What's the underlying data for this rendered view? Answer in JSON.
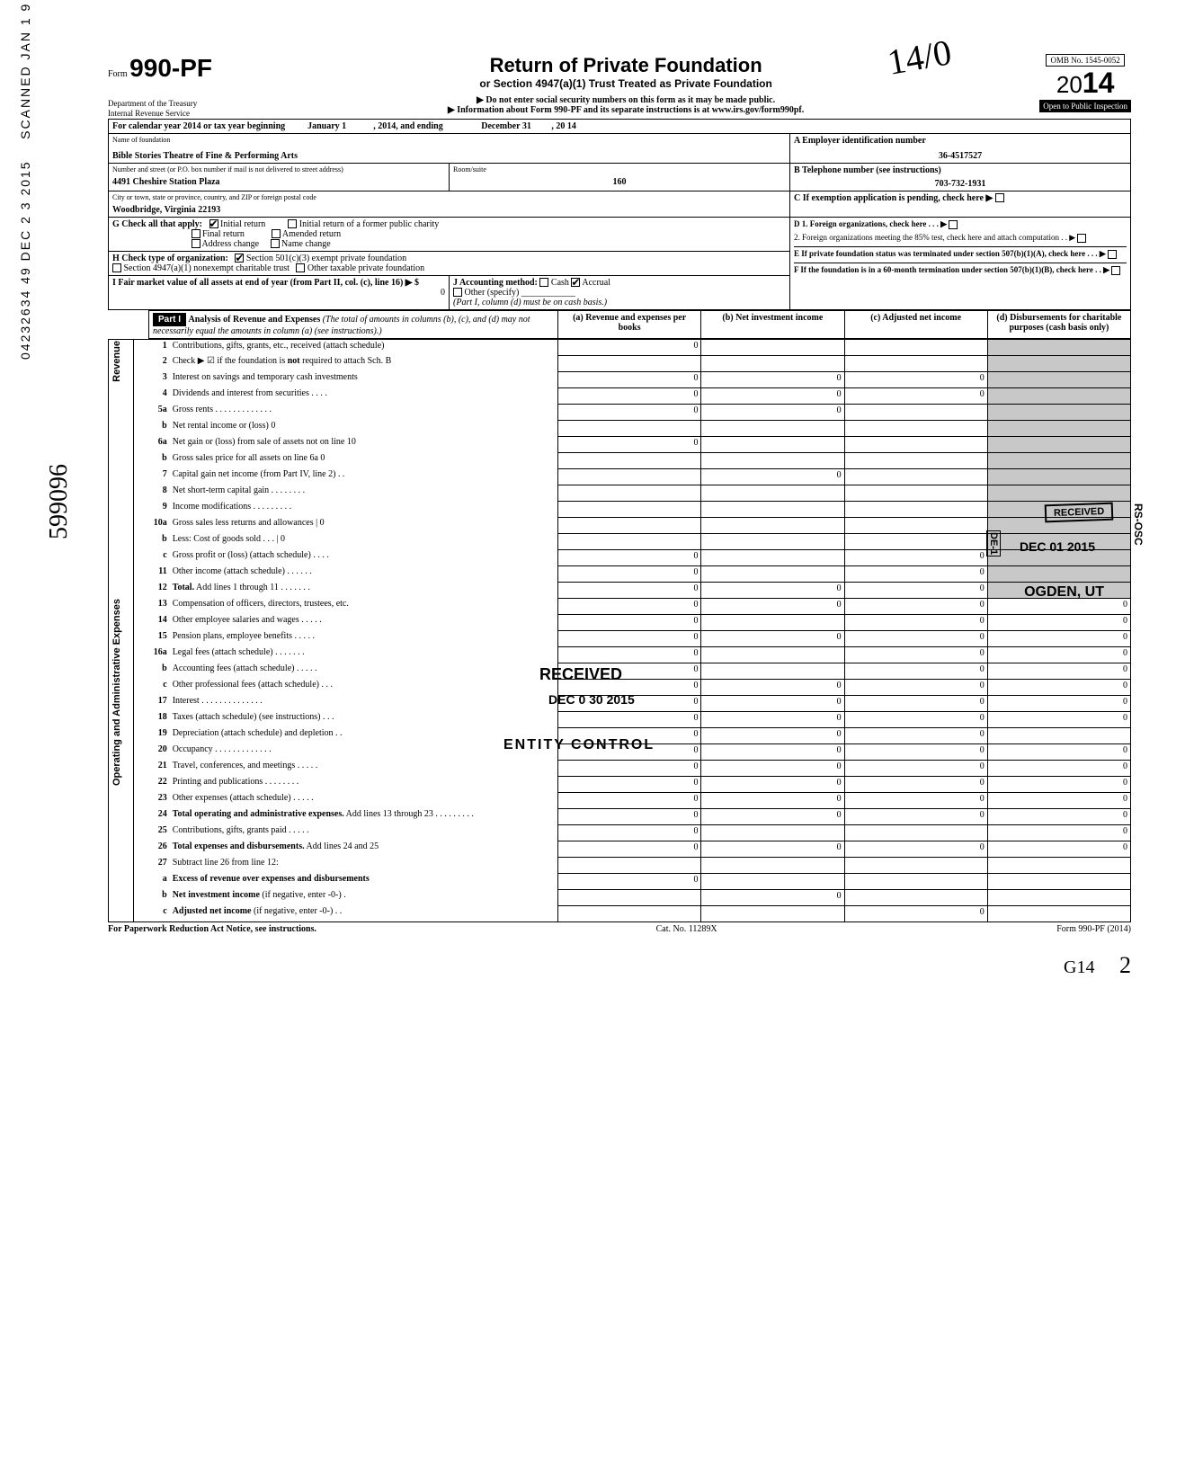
{
  "header": {
    "form": "990-PF",
    "form_prefix": "Form",
    "dept1": "Department of the Treasury",
    "dept2": "Internal Revenue Service",
    "title": "Return of Private Foundation",
    "subtitle": "or Section 4947(a)(1) Trust Treated as Private Foundation",
    "note1": "▶ Do not enter social security numbers on this form as it may be made public.",
    "note2": "▶ Information about Form 990-PF and its separate instructions is at www.irs.gov/form990pf.",
    "omb": "OMB No. 1545-0052",
    "year_prefix": "20",
    "year_big": "14",
    "open_pub": "Open to Public Inspection",
    "scribble": "14/0"
  },
  "period": {
    "label": "For calendar year 2014 or tax year beginning",
    "begin": "January 1",
    "mid": ", 2014, and ending",
    "end": "December 31",
    "end2": ", 20",
    "end_yr": "14"
  },
  "ident": {
    "name_label": "Name of foundation",
    "name": "Bible Stories Theatre of Fine & Performing Arts",
    "addr_label": "Number and street (or P.O. box number if mail is not delivered to street address)",
    "addr": "4491 Cheshire Station Plaza",
    "room_label": "Room/suite",
    "room": "160",
    "city_label": "City or town, state or province, country, and ZIP or foreign postal code",
    "city": "Woodbridge, Virginia 22193",
    "ein_label": "A  Employer identification number",
    "ein": "36-4517527",
    "tel_label": "B  Telephone number (see instructions)",
    "tel": "703-732-1931",
    "c_label": "C  If exemption application is pending, check here ▶"
  },
  "g": {
    "label": "G  Check all that apply:",
    "o1": "Initial return",
    "o1_checked": true,
    "o2": "Initial return of a former public charity",
    "o3": "Final return",
    "o4": "Amended return",
    "o5": "Address change",
    "o6": "Name change"
  },
  "h": {
    "label": "H  Check type of organization:",
    "o1": "Section 501(c)(3) exempt private foundation",
    "o1_checked": true,
    "o2": "Section 4947(a)(1) nonexempt charitable trust",
    "o3": "Other taxable private foundation"
  },
  "i": {
    "label": "I   Fair market value of all assets at end of year  (from Part II, col. (c), line 16) ▶ $",
    "val": "0"
  },
  "j": {
    "label": "J   Accounting method:",
    "o1": "Cash",
    "o2": "Accrual",
    "o2_checked": true,
    "o3": "Other (specify)",
    "note": "(Part I, column (d) must be on cash basis.)"
  },
  "d": {
    "d1": "D  1. Foreign organizations, check here . . . ▶",
    "d2": "2. Foreign organizations meeting the 85% test, check here and attach computation   .  . ▶",
    "e": "E  If private foundation status was terminated under section 507(b)(1)(A), check here  .  .  . ▶",
    "f": "F  If the foundation is in a 60-month termination under section 507(b)(1)(B), check here  .  . ▶"
  },
  "part1": {
    "hdr": "Part I",
    "title": "Analysis of Revenue and Expenses",
    "title2": "(The total of amounts in columns (b), (c), and (d) may not necessarily equal the amounts in column (a) (see instructions).)",
    "col_a": "(a) Revenue and expenses per books",
    "col_b": "(b) Net investment income",
    "col_c": "(c) Adjusted net income",
    "col_d": "(d) Disbursements for charitable purposes (cash basis only)"
  },
  "revenue_label": "Revenue",
  "opadmin_label": "Operating and Administrative Expenses",
  "rows": [
    {
      "n": "1",
      "d": "Contributions, gifts, grants, etc., received (attach schedule)",
      "a": "0"
    },
    {
      "n": "2",
      "d": "Check ▶ ☑ if the foundation is <b>not</b> required to attach Sch. B"
    },
    {
      "n": "3",
      "d": "Interest on savings and temporary cash investments",
      "a": "0",
      "b": "0",
      "c": "0"
    },
    {
      "n": "4",
      "d": "Dividends and interest from securities  .  .  .  .",
      "a": "0",
      "b": "0",
      "c": "0"
    },
    {
      "n": "5a",
      "d": "Gross rents . . . . . . . . . . . . .",
      "a": "0",
      "b": "0"
    },
    {
      "n": "b",
      "d": "Net rental income or (loss)                                      0"
    },
    {
      "n": "6a",
      "d": "Net gain or (loss) from sale of assets not on line 10",
      "a": "0"
    },
    {
      "n": "b",
      "d": "Gross sales price for all assets on line 6a                    0"
    },
    {
      "n": "7",
      "d": "Capital gain net income (from Part IV, line 2)  .  .",
      "b": "0"
    },
    {
      "n": "8",
      "d": "Net short-term capital gain . . . . . . . ."
    },
    {
      "n": "9",
      "d": "Income modifications   .  .  .  .  .  .  .  .  ."
    },
    {
      "n": "10a",
      "d": "Gross sales less returns and allowances |            0"
    },
    {
      "n": "b",
      "d": "Less: Cost of goods sold  .  .  .  |                       0"
    },
    {
      "n": "c",
      "d": "Gross profit or (loss) (attach schedule)  .  .  .  .",
      "a": "0",
      "c": "0"
    },
    {
      "n": "11",
      "d": "Other income (attach schedule)  .  .  .  .  .  .",
      "a": "0",
      "c": "0"
    },
    {
      "n": "12",
      "d": "<b>Total.</b> Add lines 1 through 11  .  .  .  .  .  .  .",
      "a": "0",
      "b": "0",
      "c": "0"
    },
    {
      "n": "13",
      "d": "Compensation of officers, directors, trustees, etc.",
      "a": "0",
      "b": "0",
      "c": "0",
      "dd": "0"
    },
    {
      "n": "14",
      "d": "Other employee salaries and wages .  .  .  .  .",
      "a": "0",
      "c": "0",
      "dd": "0"
    },
    {
      "n": "15",
      "d": "Pension plans, employee benefits   .  .  .  .  .",
      "a": "0",
      "b": "0",
      "c": "0",
      "dd": "0"
    },
    {
      "n": "16a",
      "d": "Legal fees (attach schedule)   .  .  .  .  .  .  .",
      "a": "0",
      "c": "0",
      "dd": "0"
    },
    {
      "n": "b",
      "d": "Accounting fees (attach schedule)  .  .  .  .  .",
      "a": "0",
      "c": "0",
      "dd": "0"
    },
    {
      "n": "c",
      "d": "Other professional fees (attach schedule)  .  .  .",
      "a": "0",
      "b": "0",
      "c": "0",
      "dd": "0"
    },
    {
      "n": "17",
      "d": "Interest   .  .  .  .  .  .  .  .  .  .  .  .  .  .",
      "a": "0",
      "b": "0",
      "c": "0",
      "dd": "0"
    },
    {
      "n": "18",
      "d": "Taxes (attach schedule) (see instructions)  .  .  .",
      "a": "0",
      "b": "0",
      "c": "0",
      "dd": "0"
    },
    {
      "n": "19",
      "d": "Depreciation (attach schedule) and depletion .  .",
      "a": "0",
      "b": "0",
      "c": "0"
    },
    {
      "n": "20",
      "d": "Occupancy . . . . . . . . . . . . .",
      "a": "0",
      "b": "0",
      "c": "0",
      "dd": "0"
    },
    {
      "n": "21",
      "d": "Travel, conferences, and meetings  .  .  .  .  .",
      "a": "0",
      "b": "0",
      "c": "0",
      "dd": "0"
    },
    {
      "n": "22",
      "d": "Printing and publications   .  .  .  .  .  .  .  .",
      "a": "0",
      "b": "0",
      "c": "0",
      "dd": "0"
    },
    {
      "n": "23",
      "d": "Other expenses (attach schedule)   .  .  .  .  .",
      "a": "0",
      "b": "0",
      "c": "0",
      "dd": "0"
    },
    {
      "n": "24",
      "d": "<b>Total operating and administrative expenses.</b> Add lines 13 through 23 . . . . . . . . .",
      "a": "0",
      "b": "0",
      "c": "0",
      "dd": "0"
    },
    {
      "n": "25",
      "d": "Contributions, gifts, grants paid   .  .  .  .  .",
      "a": "0",
      "dd": "0"
    },
    {
      "n": "26",
      "d": "<b>Total expenses and disbursements.</b> Add lines 24 and 25",
      "a": "0",
      "b": "0",
      "c": "0",
      "dd": "0"
    },
    {
      "n": "27",
      "d": "Subtract line 26 from line 12:"
    },
    {
      "n": "a",
      "d": "<b>Excess of revenue over expenses and disbursements</b>",
      "a": "0"
    },
    {
      "n": "b",
      "d": "<b>Net investment income</b> (if negative, enter -0-)  .",
      "b": "0"
    },
    {
      "n": "c",
      "d": "<b>Adjusted net income</b> (if negative, enter -0-)  .  .",
      "c": "0"
    }
  ],
  "stamps": {
    "received1": "RECEIVED",
    "received1_date": "DEC 01 2015",
    "ogden": "OGDEN, UT",
    "received2": "RECEIVED",
    "received2_date": "DEC 0 30 2015",
    "entity": "ENTITY CONTROL",
    "rsosc": "RS-OSC",
    "de1": "DE-1"
  },
  "side": {
    "dln": "04232634 49 DEC 2 3 2015",
    "scanned": "SCANNED JAN 1 9 2016",
    "script": "599096"
  },
  "footer": {
    "left": "For Paperwork Reduction Act Notice, see instructions.",
    "mid": "Cat. No. 11289X",
    "right": "Form 990-PF (2014)",
    "hand1": "G14",
    "hand2": "2"
  }
}
